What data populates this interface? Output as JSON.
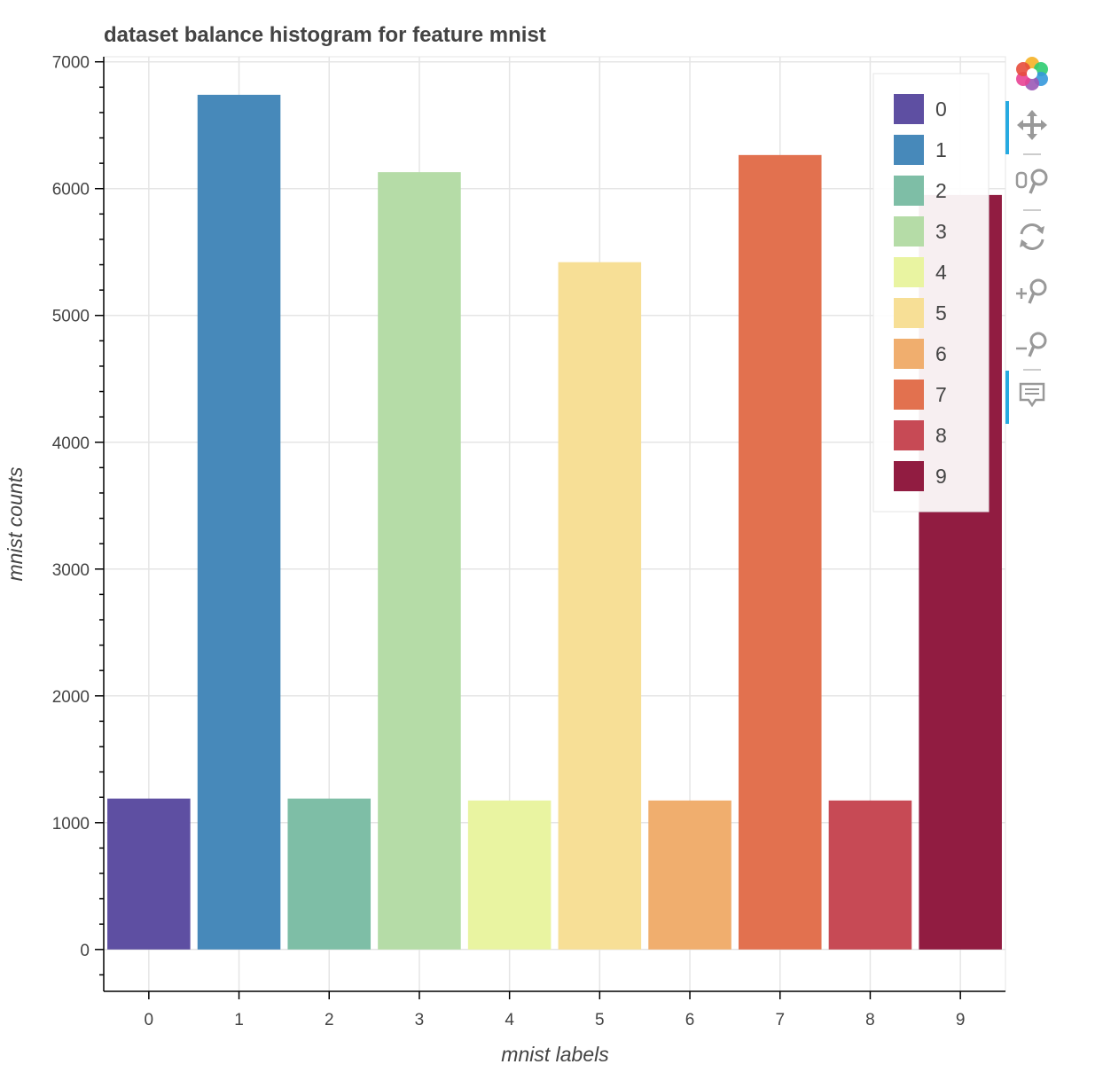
{
  "chart_data": {
    "type": "bar",
    "title": "dataset balance histogram for feature mnist",
    "xlabel": "mnist labels",
    "ylabel": "mnist counts",
    "categories": [
      "0",
      "1",
      "2",
      "3",
      "4",
      "5",
      "6",
      "7",
      "8",
      "9"
    ],
    "values": [
      1190,
      6740,
      1190,
      6130,
      1175,
      5420,
      1175,
      6265,
      1175,
      5950
    ],
    "colors": [
      "#5E4FA2",
      "#4789BA",
      "#7EBEA6",
      "#B5DCA7",
      "#E9F4A1",
      "#F7DF96",
      "#F0AE6E",
      "#E2714F",
      "#C74A55",
      "#911C41"
    ],
    "ylim": [
      -330,
      7040
    ],
    "yticks": [
      0,
      1000,
      2000,
      3000,
      4000,
      5000,
      6000,
      7000
    ],
    "ytick_labels": [
      "0",
      "1000",
      "2000",
      "3000",
      "4000",
      "5000",
      "6000",
      "7000"
    ],
    "grid": true,
    "legend": {
      "placement": "top-right",
      "entries": [
        "0",
        "1",
        "2",
        "3",
        "4",
        "5",
        "6",
        "7",
        "8",
        "9"
      ]
    }
  },
  "toolbar": {
    "tools": [
      "logo-icon",
      "pan-icon",
      "box-zoom-icon",
      "reset-icon",
      "zoom-in-icon",
      "zoom-out-icon",
      "hover-icon"
    ],
    "active": [
      "pan-icon",
      "hover-icon"
    ]
  }
}
